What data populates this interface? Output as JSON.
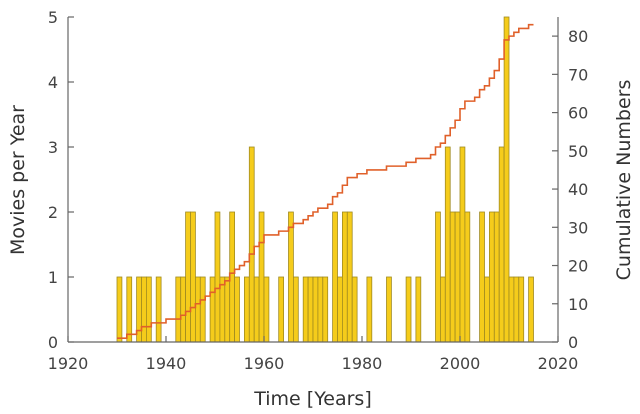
{
  "chart_data": {
    "type": "bar",
    "xlabel": "Time [Years]",
    "ylabel_left": "Movies per Year",
    "ylabel_right": "Cumulative Numbers",
    "xlim": [
      1920,
      2020
    ],
    "ylim_left": [
      0,
      5
    ],
    "ylim_right": [
      0,
      85
    ],
    "x_ticks": [
      1920,
      1940,
      1960,
      1980,
      2000,
      2020
    ],
    "y_left_ticks": [
      0,
      1,
      2,
      3,
      4,
      5
    ],
    "y_right_ticks": [
      0,
      10,
      20,
      30,
      40,
      50,
      60,
      70,
      80
    ],
    "grid": false,
    "colors": {
      "bars": "#f5cc1b",
      "bar_edge": "#a08a20",
      "cumulative": "#e0602a",
      "axes": "#666666"
    },
    "series": [
      {
        "type": "bar",
        "axis": "left",
        "x": [
          1930,
          1931,
          1932,
          1933,
          1934,
          1935,
          1936,
          1937,
          1938,
          1939,
          1940,
          1941,
          1942,
          1943,
          1944,
          1945,
          1946,
          1947,
          1948,
          1949,
          1950,
          1951,
          1952,
          1953,
          1954,
          1955,
          1956,
          1957,
          1958,
          1959,
          1960,
          1961,
          1962,
          1963,
          1964,
          1965,
          1966,
          1967,
          1968,
          1969,
          1970,
          1971,
          1972,
          1973,
          1974,
          1975,
          1976,
          1977,
          1978,
          1979,
          1980,
          1981,
          1982,
          1983,
          1984,
          1985,
          1986,
          1987,
          1988,
          1989,
          1990,
          1991,
          1992,
          1993,
          1994,
          1995,
          1996,
          1997,
          1998,
          1999,
          2000,
          2001,
          2002,
          2003,
          2004,
          2005,
          2006,
          2007,
          2008,
          2009,
          2010,
          2011,
          2012,
          2013,
          2014
        ],
        "values": [
          1,
          0,
          1,
          0,
          1,
          1,
          1,
          0,
          1,
          0,
          0,
          0,
          1,
          1,
          2,
          2,
          1,
          1,
          0,
          1,
          2,
          1,
          1,
          2,
          1,
          0,
          1,
          3,
          1,
          2,
          1,
          0,
          0,
          1,
          0,
          2,
          1,
          0,
          1,
          1,
          1,
          1,
          1,
          0,
          2,
          1,
          2,
          2,
          1,
          0,
          0,
          1,
          0,
          0,
          0,
          1,
          0,
          0,
          0,
          1,
          0,
          1,
          0,
          0,
          0,
          2,
          1,
          3,
          2,
          2,
          3,
          2,
          0,
          0,
          2,
          1,
          2,
          2,
          3,
          5,
          1,
          1,
          1,
          0,
          1
        ]
      },
      {
        "type": "step",
        "axis": "right",
        "x": [
          1930,
          1931,
          1932,
          1933,
          1934,
          1935,
          1936,
          1937,
          1938,
          1939,
          1940,
          1941,
          1942,
          1943,
          1944,
          1945,
          1946,
          1947,
          1948,
          1949,
          1950,
          1951,
          1952,
          1953,
          1954,
          1955,
          1956,
          1957,
          1958,
          1959,
          1960,
          1961,
          1962,
          1963,
          1964,
          1965,
          1966,
          1967,
          1968,
          1969,
          1970,
          1971,
          1972,
          1973,
          1974,
          1975,
          1976,
          1977,
          1978,
          1979,
          1980,
          1981,
          1982,
          1983,
          1984,
          1985,
          1986,
          1987,
          1988,
          1989,
          1990,
          1991,
          1992,
          1993,
          1994,
          1995,
          1996,
          1997,
          1998,
          1999,
          2000,
          2001,
          2002,
          2003,
          2004,
          2005,
          2006,
          2007,
          2008,
          2009,
          2010,
          2011,
          2012,
          2013,
          2014,
          2015
        ],
        "values": [
          1,
          1,
          2,
          2,
          3,
          4,
          4,
          5,
          5,
          5,
          6,
          6,
          6,
          7,
          8,
          9,
          10,
          11,
          12,
          13,
          14,
          15,
          16,
          18,
          19,
          20,
          21,
          23,
          25,
          26,
          28,
          28,
          28,
          29,
          29,
          30,
          31,
          31,
          32,
          33,
          34,
          35,
          35,
          36,
          38,
          39,
          41,
          43,
          43,
          44,
          44,
          45,
          45,
          45,
          45,
          46,
          46,
          46,
          46,
          47,
          47,
          48,
          48,
          48,
          49,
          51,
          52,
          54,
          56,
          58,
          61,
          63,
          63,
          64,
          66,
          67,
          69,
          71,
          74,
          79,
          80,
          81,
          82,
          82,
          83,
          83
        ]
      }
    ]
  }
}
